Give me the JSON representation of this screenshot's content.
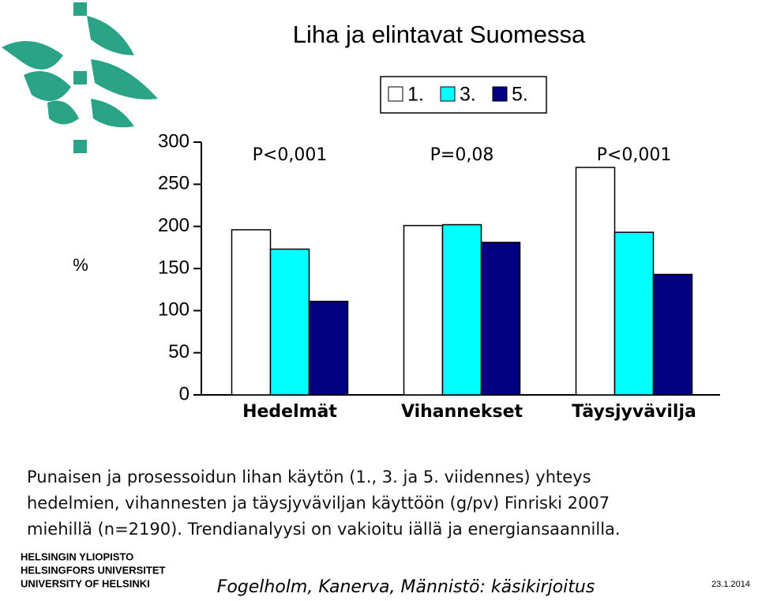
{
  "chart_data": {
    "type": "bar",
    "title": "Liha ja elintavat Suomessa",
    "y_label": "%",
    "categories": [
      "Hedelmät",
      "Vihannekset",
      "Täysjyvävilja"
    ],
    "annotations": [
      "P<0,001",
      "P=0,08",
      "P<0,001"
    ],
    "series": [
      {
        "name": "1.",
        "color": "#ffffff",
        "values": [
          196,
          201,
          270
        ]
      },
      {
        "name": "3.",
        "color": "#00ffff",
        "values": [
          173,
          202,
          193
        ]
      },
      {
        "name": "5.",
        "color": "#000080",
        "values": [
          111,
          181,
          143
        ]
      }
    ],
    "ylim": [
      0,
      300
    ],
    "yticks": [
      0,
      50,
      100,
      150,
      200,
      250,
      300
    ]
  },
  "caption": [
    "Punaisen ja prosessoidun lihan käytön (1., 3. ja 5. viidennes) yhteys",
    "hedelmien, vihannesten ja täysjyväviljan käyttöön (g/pv) Finriski 2007",
    "miehillä (n=2190). Trendianalyysi on vakioitu iällä ja energiansaannilla."
  ],
  "footer": {
    "logo_text": [
      "HELSINGIN YLIOPISTO",
      "HELSINGFORS UNIVERSITET",
      "UNIVERSITY OF HELSINKI"
    ],
    "source": "Fogelholm, Kanerva, Männistö: käsikirjoitus",
    "date": "23.1.2014"
  }
}
